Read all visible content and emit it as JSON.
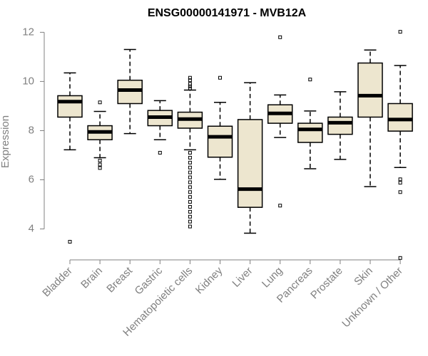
{
  "chart_data": {
    "type": "box",
    "title": "ENSG00000141971 - MVB12A",
    "xlabel": "",
    "ylabel": "Expression",
    "ylim": [
      2.8,
      12.3
    ],
    "yticks": [
      4,
      6,
      8,
      10,
      12
    ],
    "grid": false,
    "legend": "none",
    "box_fill": "#ede6cf",
    "categories": [
      "Bladder",
      "Brain",
      "Breast",
      "Gastric",
      "Hematopoietic cells",
      "Kidney",
      "Liver",
      "Lung",
      "Pancreas",
      "Prostate",
      "Skin",
      "Unknown / Other"
    ],
    "boxes": [
      {
        "whisker_low": 7.22,
        "q1": 8.55,
        "median": 9.18,
        "q3": 9.42,
        "whisker_high": 10.35,
        "outliers": [
          3.48
        ]
      },
      {
        "whisker_low": 6.9,
        "q1": 7.63,
        "median": 7.95,
        "q3": 8.2,
        "whisker_high": 8.78,
        "outliers": [
          6.48,
          6.62,
          6.78,
          9.15
        ]
      },
      {
        "whisker_low": 7.88,
        "q1": 9.1,
        "median": 9.65,
        "q3": 10.05,
        "whisker_high": 11.3,
        "outliers": []
      },
      {
        "whisker_low": 7.63,
        "q1": 8.2,
        "median": 8.55,
        "q3": 8.82,
        "whisker_high": 9.22,
        "outliers": [
          7.1
        ]
      },
      {
        "whisker_low": 7.22,
        "q1": 8.1,
        "median": 8.47,
        "q3": 8.75,
        "whisker_high": 9.65,
        "outliers": [
          10.15,
          10.05,
          9.9,
          9.8,
          9.72,
          7.1,
          6.9,
          6.7,
          6.5,
          6.3,
          6.1,
          5.9,
          5.7,
          5.5,
          5.3,
          5.1,
          4.9,
          4.7,
          4.5,
          4.3,
          4.1
        ]
      },
      {
        "whisker_low": 6.02,
        "q1": 6.92,
        "median": 7.75,
        "q3": 8.18,
        "whisker_high": 9.15,
        "outliers": [
          10.15
        ]
      },
      {
        "whisker_low": 3.83,
        "q1": 4.88,
        "median": 5.62,
        "q3": 8.45,
        "whisker_high": 9.95,
        "outliers": []
      },
      {
        "whisker_low": 7.72,
        "q1": 8.3,
        "median": 8.7,
        "q3": 9.05,
        "whisker_high": 9.45,
        "outliers": [
          11.8,
          4.95
        ]
      },
      {
        "whisker_low": 6.45,
        "q1": 7.52,
        "median": 8.05,
        "q3": 8.3,
        "whisker_high": 8.8,
        "outliers": [
          10.08
        ]
      },
      {
        "whisker_low": 6.83,
        "q1": 7.85,
        "median": 8.32,
        "q3": 8.55,
        "whisker_high": 9.58,
        "outliers": []
      },
      {
        "whisker_low": 5.72,
        "q1": 8.55,
        "median": 9.42,
        "q3": 10.75,
        "whisker_high": 11.28,
        "outliers": []
      },
      {
        "whisker_low": 6.5,
        "q1": 7.98,
        "median": 8.45,
        "q3": 9.1,
        "whisker_high": 10.65,
        "outliers": [
          12.02,
          6.02,
          5.88,
          5.5,
          2.82
        ]
      }
    ]
  }
}
